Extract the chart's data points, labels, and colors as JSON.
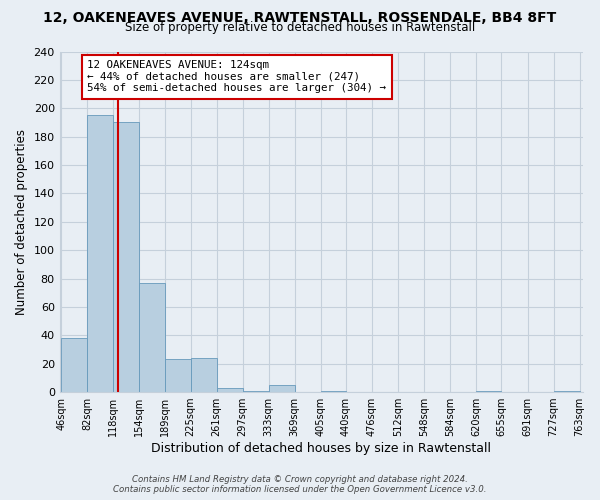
{
  "title": "12, OAKENEAVES AVENUE, RAWTENSTALL, ROSSENDALE, BB4 8FT",
  "subtitle": "Size of property relative to detached houses in Rawtenstall",
  "xlabel": "Distribution of detached houses by size in Rawtenstall",
  "ylabel": "Number of detached properties",
  "bar_edges": [
    46,
    82,
    118,
    154,
    189,
    225,
    261,
    297,
    333,
    369,
    405,
    440,
    476,
    512,
    548,
    584,
    620,
    655,
    691,
    727,
    763
  ],
  "bar_heights": [
    38,
    195,
    190,
    77,
    23,
    24,
    3,
    1,
    5,
    0,
    1,
    0,
    0,
    0,
    0,
    0,
    1,
    0,
    0,
    1
  ],
  "bar_color": "#b8cfe0",
  "bar_edge_color": "#6699bb",
  "property_line_x": 124,
  "property_line_color": "#cc0000",
  "annotation_text": "12 OAKENEAVES AVENUE: 124sqm\n← 44% of detached houses are smaller (247)\n54% of semi-detached houses are larger (304) →",
  "annotation_box_color": "#ffffff",
  "annotation_box_edge": "#cc0000",
  "ylim": [
    0,
    240
  ],
  "yticks": [
    0,
    20,
    40,
    60,
    80,
    100,
    120,
    140,
    160,
    180,
    200,
    220,
    240
  ],
  "tick_labels": [
    "46sqm",
    "82sqm",
    "118sqm",
    "154sqm",
    "189sqm",
    "225sqm",
    "261sqm",
    "297sqm",
    "333sqm",
    "369sqm",
    "405sqm",
    "440sqm",
    "476sqm",
    "512sqm",
    "548sqm",
    "584sqm",
    "620sqm",
    "655sqm",
    "691sqm",
    "727sqm",
    "763sqm"
  ],
  "footer_text": "Contains HM Land Registry data © Crown copyright and database right 2024.\nContains public sector information licensed under the Open Government Licence v3.0.",
  "background_color": "#e8eef4",
  "plot_bg_color": "#e8eef4",
  "grid_color": "#c5d0db"
}
